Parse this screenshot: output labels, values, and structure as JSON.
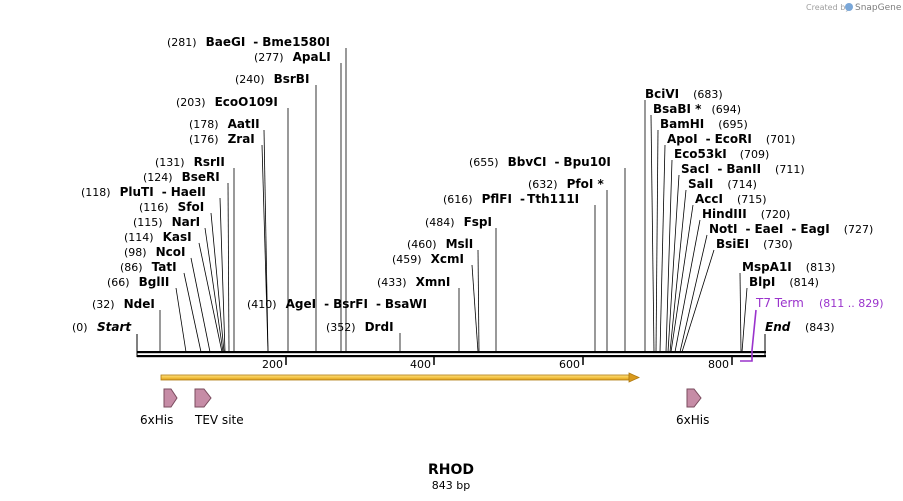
{
  "credit": {
    "prefix": "Created by",
    "brand": "SnapGene"
  },
  "plasmid": {
    "name": "RHOD",
    "length_label": "843 bp"
  },
  "axis": {
    "ticks": [
      "200",
      "400",
      "600",
      "800"
    ]
  },
  "start_label": {
    "pos": "(0)",
    "name": "Start"
  },
  "end_label": {
    "pos": "(843)",
    "name": "End"
  },
  "terminator": {
    "name": "T7 Term",
    "range": "(811 .. 829)"
  },
  "sites_left": [
    {
      "pos": "(281)",
      "names": [
        "BaeGI",
        "Bme1580I"
      ]
    },
    {
      "pos": "(277)",
      "names": [
        "ApaLI"
      ]
    },
    {
      "pos": "(240)",
      "names": [
        "BsrBI"
      ]
    },
    {
      "pos": "(203)",
      "names": [
        "EcoO109I"
      ]
    },
    {
      "pos": "(178)",
      "names": [
        "AatII"
      ]
    },
    {
      "pos": "(176)",
      "names": [
        "ZraI"
      ]
    },
    {
      "pos": "(131)",
      "names": [
        "RsrII"
      ]
    },
    {
      "pos": "(124)",
      "names": [
        "BseRI"
      ]
    },
    {
      "pos": "(118)",
      "names": [
        "PluTI",
        "HaeII"
      ]
    },
    {
      "pos": "(116)",
      "names": [
        "SfoI"
      ]
    },
    {
      "pos": "(115)",
      "names": [
        "NarI"
      ]
    },
    {
      "pos": "(114)",
      "names": [
        "KasI"
      ]
    },
    {
      "pos": "(98)",
      "names": [
        "NcoI"
      ]
    },
    {
      "pos": "(86)",
      "names": [
        "TatI"
      ]
    },
    {
      "pos": "(66)",
      "names": [
        "BglII"
      ]
    },
    {
      "pos": "(32)",
      "names": [
        "NdeI"
      ]
    },
    {
      "pos": "(410)",
      "names": [
        "AgeI",
        "BsrFI",
        "BsaWI"
      ]
    },
    {
      "pos": "(352)",
      "names": [
        "DrdI"
      ]
    }
  ],
  "sites_mid": [
    {
      "pos": "(655)",
      "names": [
        "BbvCI",
        "Bpu10I"
      ]
    },
    {
      "pos": "(632)",
      "names": [
        "PfoI *"
      ]
    },
    {
      "pos": "(616)",
      "names": [
        "PflFI",
        "Tth111I"
      ]
    },
    {
      "pos": "(484)",
      "names": [
        "FspI"
      ]
    },
    {
      "pos": "(460)",
      "names": [
        "MslI"
      ]
    },
    {
      "pos": "(459)",
      "names": [
        "XcmI"
      ]
    },
    {
      "pos": "(433)",
      "names": [
        "XmnI"
      ]
    }
  ],
  "sites_right": [
    {
      "names": [
        "BciVI"
      ],
      "pos": "(683)"
    },
    {
      "names": [
        "BsaBI *"
      ],
      "pos": "(694)"
    },
    {
      "names": [
        "BamHI"
      ],
      "pos": "(695)"
    },
    {
      "names": [
        "ApoI",
        "EcoRI"
      ],
      "pos": "(701)"
    },
    {
      "names": [
        "Eco53kI"
      ],
      "pos": "(709)"
    },
    {
      "names": [
        "SacI",
        "BanII"
      ],
      "pos": "(711)"
    },
    {
      "names": [
        "SalI"
      ],
      "pos": "(714)"
    },
    {
      "names": [
        "AccI"
      ],
      "pos": "(715)"
    },
    {
      "names": [
        "HindIII"
      ],
      "pos": "(720)"
    },
    {
      "names": [
        "NotI",
        "EaeI",
        "EagI"
      ],
      "pos": "(727)"
    },
    {
      "names": [
        "BsiEI"
      ],
      "pos": "(730)"
    },
    {
      "names": [
        "MspA1I"
      ],
      "pos": "(813)"
    },
    {
      "names": [
        "BlpI"
      ],
      "pos": "(814)"
    }
  ],
  "features": [
    {
      "name": "6xHis"
    },
    {
      "name": "TEV site"
    },
    {
      "name": "6xHis"
    }
  ],
  "colors": {
    "backbone": "#000000",
    "orf_fill": "#f5c542",
    "orf_stroke": "#b07a10",
    "feature_fill": "#c68ca6",
    "feature_stroke": "#7a4b5e",
    "terminator": "#9a33cc"
  }
}
